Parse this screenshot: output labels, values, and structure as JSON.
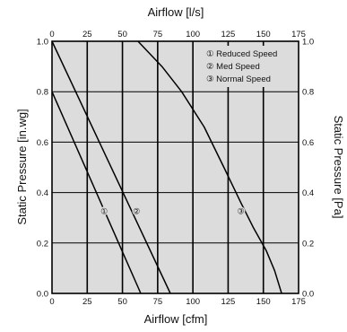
{
  "chart_data": {
    "type": "line",
    "title": "Airflow [l/s]",
    "xlabel": "Airflow [cfm]",
    "ylabel": "Static Pressure [in.wg]",
    "y2label": "Static Pressure [Pa]",
    "xlim": [
      0,
      175
    ],
    "ylim": [
      0,
      1.0
    ],
    "x_ticks": [
      "0",
      "25",
      "50",
      "75",
      "100",
      "125",
      "150",
      "175"
    ],
    "x2_ticks": [
      "0",
      "25",
      "50",
      "75",
      "100",
      "125",
      "150",
      "175"
    ],
    "y_ticks": [
      "0.0",
      "0.2",
      "0.4",
      "0.6",
      "0.8",
      "1.0"
    ],
    "y2_ticks": [
      "0.0",
      "0.2",
      "0.4",
      "0.6",
      "0.8",
      "1.0"
    ],
    "grid": true,
    "legend_position": "top-right",
    "legend": [
      "① Reduced Speed",
      "② Med Speed",
      "③ Normal Speed"
    ],
    "series": [
      {
        "name": "Reduced Speed",
        "marker": "①",
        "x": [
          0,
          63
        ],
        "y": [
          0.8,
          0.0
        ],
        "label_at": [
          37,
          0.33
        ]
      },
      {
        "name": "Med Speed",
        "marker": "②",
        "x": [
          0,
          84
        ],
        "y": [
          1.0,
          0.0
        ],
        "label_at": [
          60,
          0.33
        ]
      },
      {
        "name": "Normal Speed",
        "marker": "③",
        "x": [
          61,
          78,
          92,
          108,
          122,
          134,
          143,
          152,
          158,
          163
        ],
        "y": [
          1.0,
          0.9,
          0.8,
          0.66,
          0.5,
          0.36,
          0.26,
          0.17,
          0.09,
          0.0
        ],
        "label_at": [
          134,
          0.33
        ]
      }
    ]
  }
}
